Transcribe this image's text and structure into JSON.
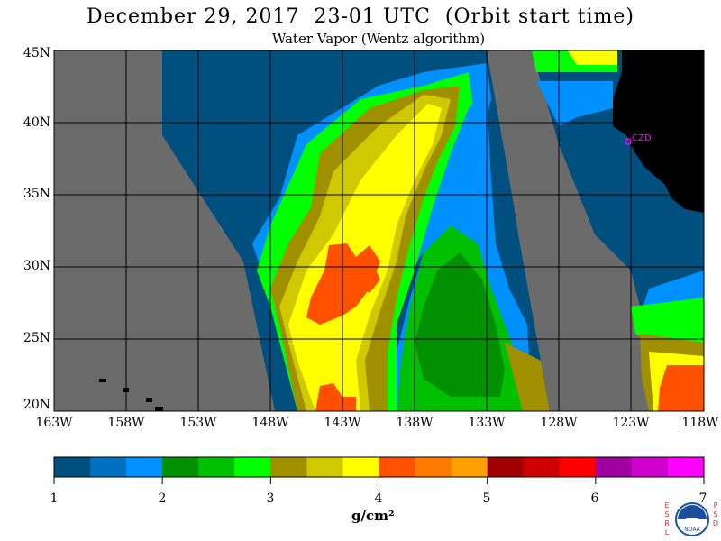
{
  "title": "December 29, 2017  23-01 UTC  (Orbit start time)",
  "subtitle": "Water Vapor (Wentz algorithm)",
  "map": {
    "lat_ticks": [
      "45N",
      "40N",
      "35N",
      "30N",
      "25N",
      "20N"
    ],
    "lon_ticks": [
      "163W",
      "158W",
      "153W",
      "148W",
      "143W",
      "138W",
      "133W",
      "128W",
      "123W",
      "118W"
    ],
    "station_label": "CZD",
    "station_color": "#ff00ff",
    "land_color": "#000000",
    "nodata_color": "#6b6b6b",
    "grid_color": "#000000"
  },
  "colorbar": {
    "tick_labels": [
      "1",
      "2",
      "3",
      "4",
      "5",
      "6",
      "7"
    ],
    "units": "g/cm²",
    "colors": [
      "#00507f",
      "#0070c0",
      "#0090ff",
      "#009000",
      "#00c000",
      "#00ff00",
      "#a09000",
      "#d0c800",
      "#ffff00",
      "#ff5000",
      "#ff7800",
      "#ffa000",
      "#a00000",
      "#d00000",
      "#ff0000",
      "#a000a0",
      "#d000d0",
      "#ff00ff"
    ]
  },
  "logo": {
    "left_letters": [
      "E",
      "S",
      "R",
      "L"
    ],
    "right_letters": [
      "P",
      "S",
      "D"
    ],
    "noaa_text": "NOAA"
  }
}
